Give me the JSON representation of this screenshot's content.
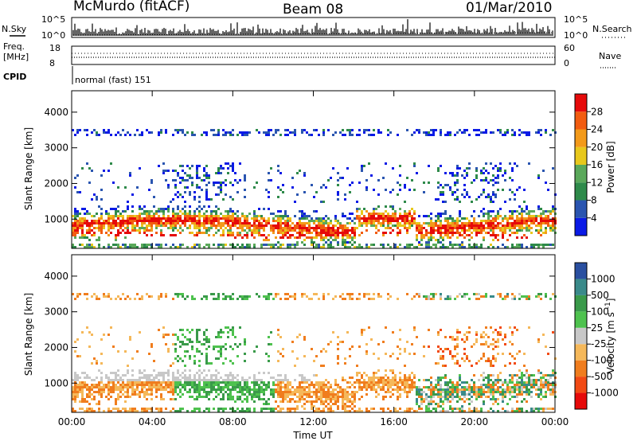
{
  "header": {
    "station": "McMurdo (fitACF)",
    "beam": "Beam 08",
    "date": "01/Mar/2010"
  },
  "top_panels": {
    "nsky_label": "N.Sky",
    "nsearch_label": "N.Search",
    "nsky_ticks": [
      "10^5",
      "10^0"
    ],
    "nsearch_ticks": [
      "10^5",
      "10^0"
    ],
    "freq_label_1": "Freq.",
    "freq_label_2": "[MHz]",
    "freq_ticks": [
      "18",
      "8"
    ],
    "nave_label": "Nave",
    "nave_ticks": [
      "60",
      "0"
    ],
    "cpid_label": "CPID",
    "cpid_value": "normal (fast) 151"
  },
  "colors": {
    "power": [
      "#0a1ae6",
      "#2a55b0",
      "#2e8a4a",
      "#5aa85a",
      "#e8c81c",
      "#f39a1a",
      "#f25c10",
      "#e60a0a"
    ],
    "velocity": [
      "#e60a0a",
      "#f24a14",
      "#f07d1e",
      "#f5b85a",
      "#c8c8c8",
      "#4ec24e",
      "#3a9a4a",
      "#3a8a8a",
      "#2a4fa0"
    ]
  },
  "chart_data": [
    {
      "type": "heatmap",
      "name": "power-panel",
      "ylabel": "Slant Range [km]",
      "xlabel": "",
      "x_ticks": [
        "00:00",
        "04:00",
        "08:00",
        "12:00",
        "16:00",
        "20:00",
        "00:00"
      ],
      "y_ticks": [
        1000,
        2000,
        3000,
        4000
      ],
      "xlim_hours": [
        0,
        24
      ],
      "ylim_km": [
        180,
        4600
      ],
      "colorbar_label": "Power [dB]",
      "colorbar_ticks": [
        4,
        8,
        12,
        16,
        20,
        24,
        28
      ],
      "colorbar_range": [
        0,
        32
      ]
    },
    {
      "type": "heatmap",
      "name": "velocity-panel",
      "ylabel": "Slant Range [km]",
      "xlabel": "Time UT",
      "x_ticks": [
        "00:00",
        "04:00",
        "08:00",
        "12:00",
        "16:00",
        "20:00",
        "00:00"
      ],
      "y_ticks": [
        1000,
        2000,
        3000,
        4000
      ],
      "xlim_hours": [
        0,
        24
      ],
      "ylim_km": [
        180,
        4600
      ],
      "colorbar_label": "Velocity [m s^-1]",
      "colorbar_ticks": [
        "1000",
        "500",
        "100",
        "25",
        "-25",
        "-100",
        "-500",
        "-1000"
      ]
    }
  ]
}
